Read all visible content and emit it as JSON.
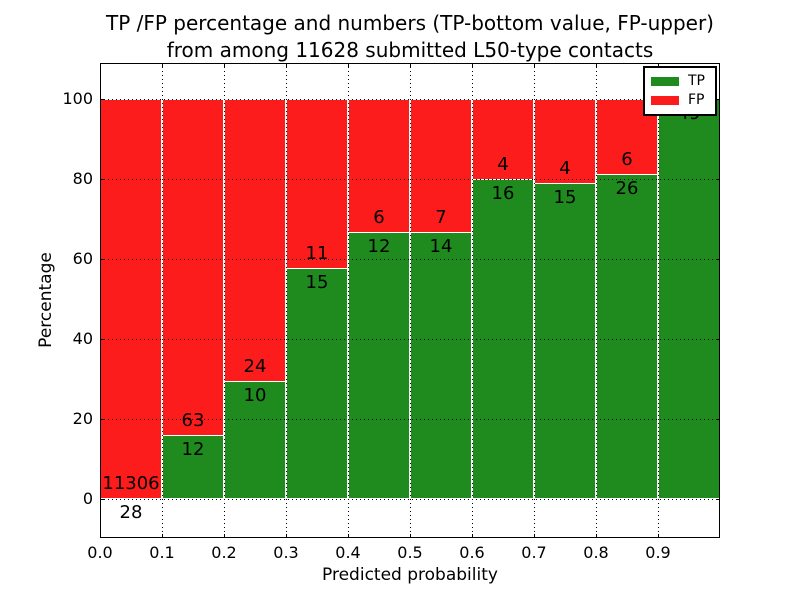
{
  "chart_data": {
    "type": "bar",
    "stacked": true,
    "normalized_to_percent": true,
    "title": "TP /FP percentage and numbers (TP-bottom value, FP-upper)\nfrom among 11628 submitted L50-type contacts",
    "title_lines": [
      "TP /FP percentage and numbers (TP-bottom value, FP-upper)",
      "from among 11628 submitted L50-type contacts"
    ],
    "total_contacts": 11628,
    "xlabel": "Predicted probability",
    "ylabel": "Percentage",
    "categories": [
      "0.0-0.1",
      "0.1-0.2",
      "0.2-0.3",
      "0.3-0.4",
      "0.4-0.5",
      "0.5-0.6",
      "0.6-0.7",
      "0.7-0.8",
      "0.8-0.9",
      "0.9-1.0"
    ],
    "bin_edges": [
      0.0,
      0.1,
      0.2,
      0.3,
      0.4,
      0.5,
      0.6,
      0.7,
      0.8,
      0.9,
      1.0
    ],
    "series": [
      {
        "name": "TP",
        "color": "#1f8b1f",
        "counts": [
          28,
          12,
          10,
          15,
          12,
          14,
          16,
          15,
          26,
          49
        ]
      },
      {
        "name": "FP",
        "color": "#fc1c1c",
        "counts": [
          11306,
          63,
          24,
          11,
          6,
          7,
          4,
          4,
          6,
          0
        ]
      }
    ],
    "bar_value_labels": "TP count just below segment boundary, FP count just above it",
    "xticks": [
      "0.0",
      "0.1",
      "0.2",
      "0.3",
      "0.4",
      "0.5",
      "0.6",
      "0.7",
      "0.8",
      "0.9"
    ],
    "yticks": [
      "0",
      "20",
      "40",
      "60",
      "80",
      "100"
    ],
    "xlim": [
      0.0,
      1.0
    ],
    "ylim": [
      -9.75,
      109
    ],
    "grid": {
      "on": true,
      "style": "dotted",
      "color": "#000000",
      "above_bars": true
    },
    "legend": {
      "position": "upper right",
      "entries": [
        {
          "label": "TP",
          "color": "#1f8b1f"
        },
        {
          "label": "FP",
          "color": "#fc1c1c"
        }
      ]
    },
    "bar_edge_color": "#ffffff",
    "background_color": "#ffffff"
  }
}
